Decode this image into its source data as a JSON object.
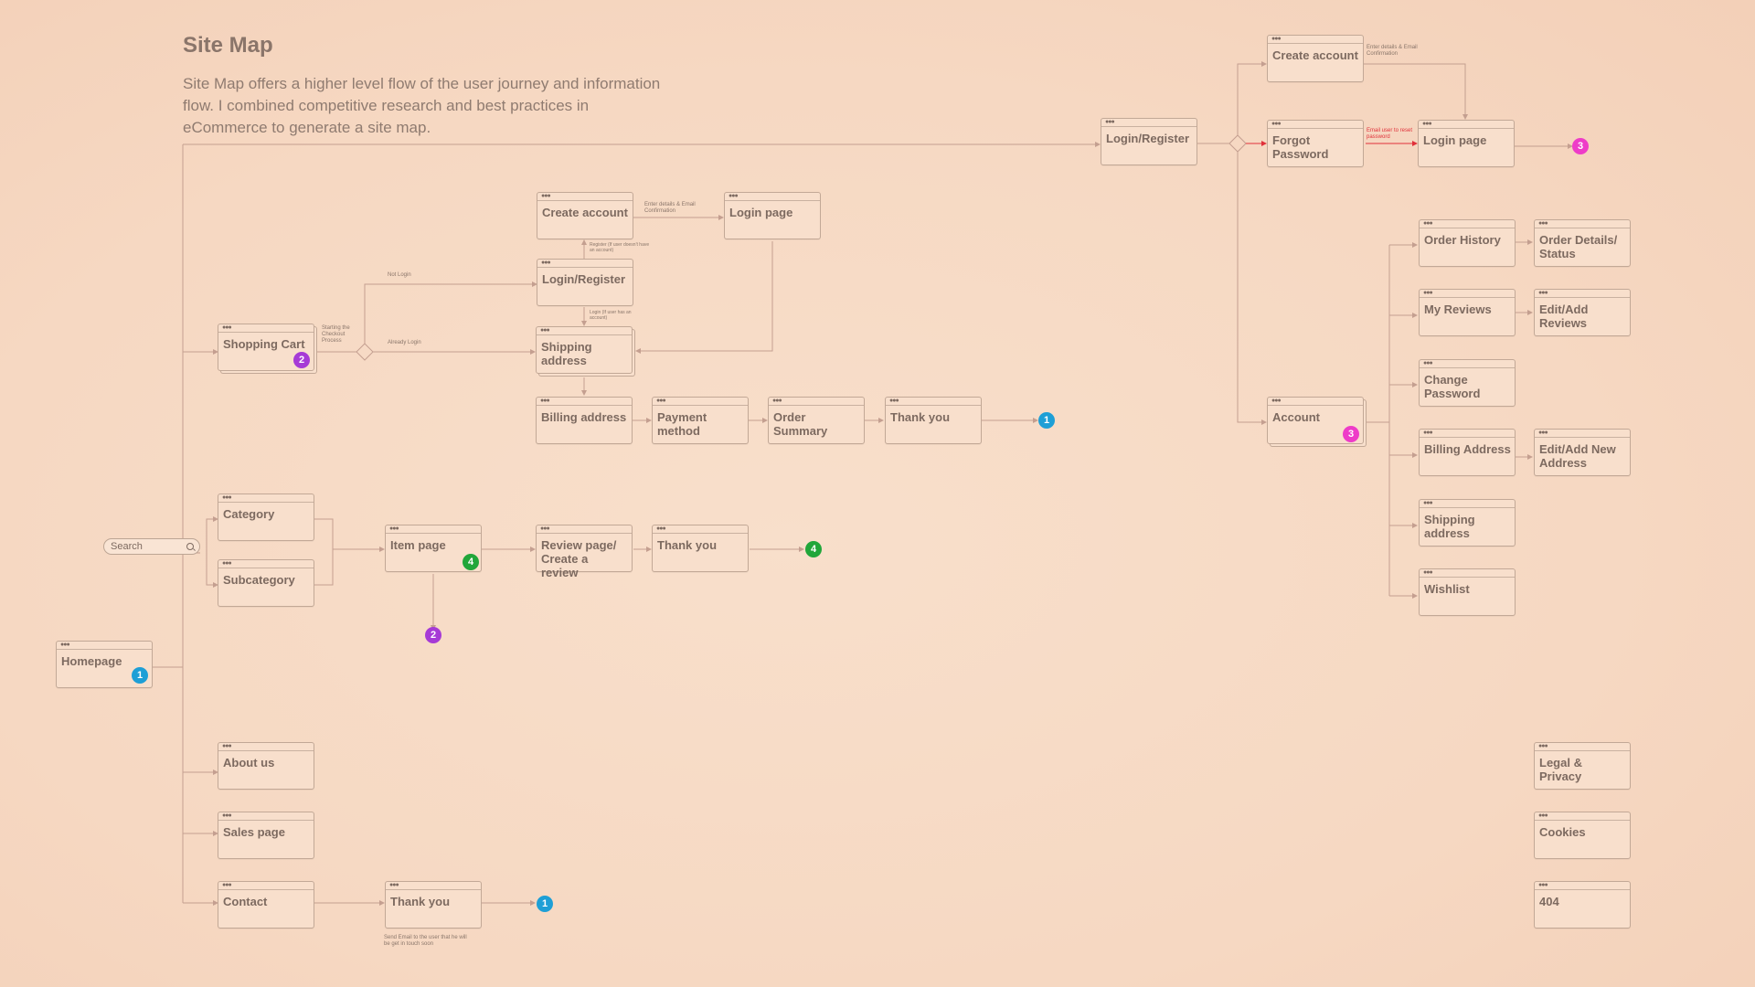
{
  "header": {
    "title": "Site Map",
    "description": "Site Map offers a higher level flow of the user journey and information flow. I combined competitive research and best practices in eCommerce to generate a site map."
  },
  "search": {
    "label": "Search",
    "icon": "search-icon"
  },
  "nodes": {
    "homepage": "Homepage",
    "shopping_cart": "Shopping Cart",
    "create_account_checkout": "Create account",
    "login_page_checkout": "Login page",
    "login_register_checkout": "Login/Register",
    "shipping_address_checkout": "Shipping address",
    "billing_address_checkout": "Billing address",
    "payment_method": "Payment method",
    "order_summary": "Order Summary",
    "thank_you_checkout": "Thank you",
    "category": "Category",
    "subcategory": "Subcategory",
    "item_page": "Item page",
    "review_page": "Review page/ Create a review",
    "thank_you_review": "Thank you",
    "about_us": "About us",
    "sales_page": "Sales page",
    "contact": "Contact",
    "thank_you_contact": "Thank you",
    "login_register_top": "Login/Register",
    "create_account_top": "Create account",
    "forgot_password": "Forgot Password",
    "login_page_top": "Login page",
    "account": "Account",
    "order_history": "Order History",
    "order_details": "Order Details/ Status",
    "my_reviews": "My Reviews",
    "edit_reviews": "Edit/Add Reviews",
    "change_password": "Change Password",
    "billing_address_account": "Billing Address",
    "edit_address": "Edit/Add New Address",
    "shipping_address_account": "Shipping address",
    "wishlist": "Wishlist",
    "legal": "Legal & Privacy",
    "cookies": "Cookies",
    "not_found": "404"
  },
  "notes": {
    "checkout_start": "Starting the Checkout Process",
    "not_login": "Not Login",
    "already_login": "Already Login",
    "enter_details": "Enter details & Email Confirmation",
    "register": "Register (If user doesn't have an account)",
    "login": "Login (If user has an account)",
    "enter_details_top": "Enter details & Email Confirmation",
    "email_reset": "Email user to reset password",
    "send_email": "Send Email to the user that he will be get in touch soon"
  },
  "badges": {
    "one": "1",
    "two": "2",
    "three": "3",
    "four": "4"
  },
  "colors": {
    "background": "#f7dcc8",
    "line": "#c49f90",
    "badge_blue": "#1e9fd6",
    "badge_purple": "#a63ad6",
    "badge_pink": "#ee3cc8",
    "badge_green": "#21a63a",
    "alert_red": "#e0303a"
  }
}
